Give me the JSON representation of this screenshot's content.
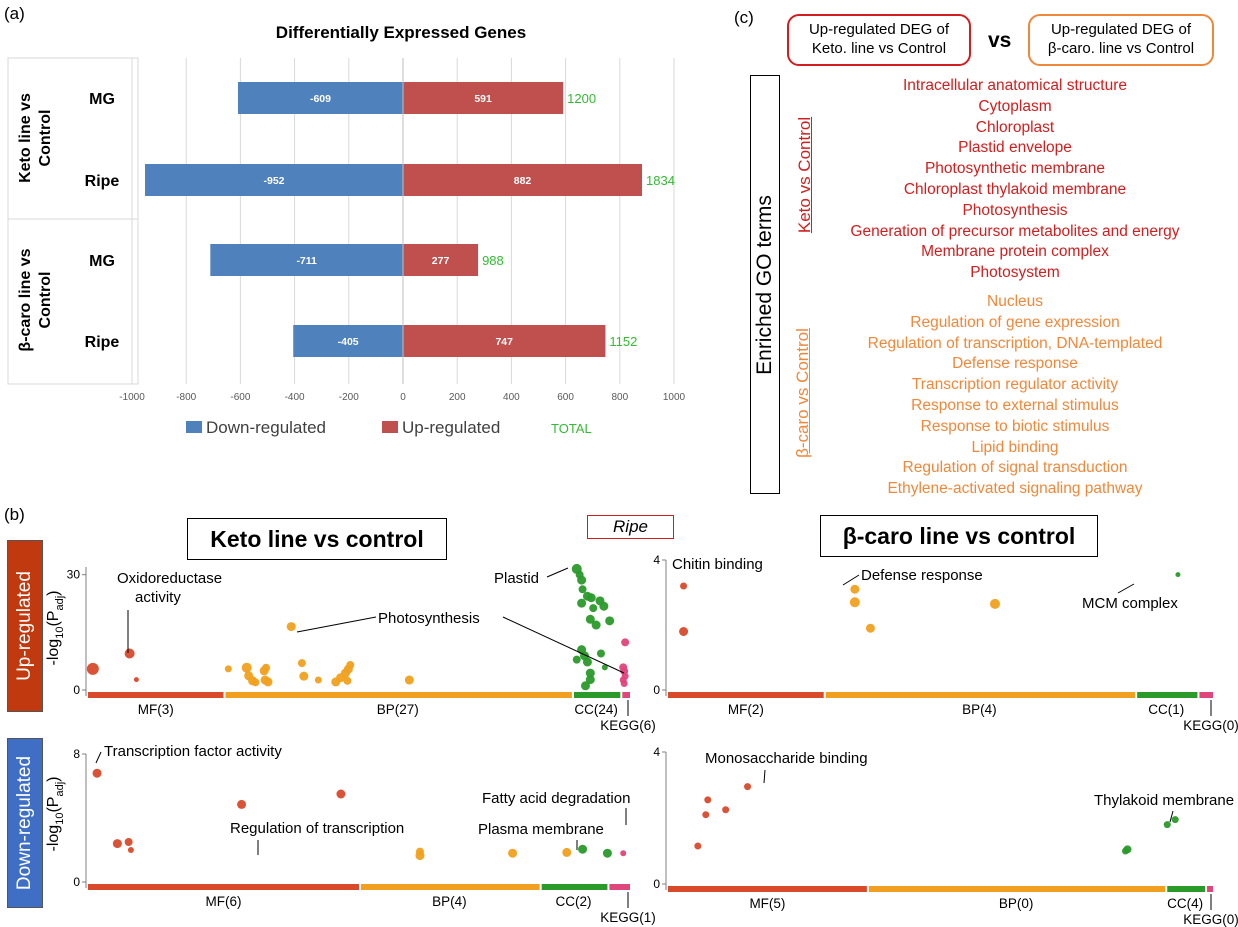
{
  "panel_labels": {
    "a": "(a)",
    "b": "(b)",
    "c": "(c)"
  },
  "chart_data": [
    {
      "type": "bar",
      "orientation": "horizontal",
      "title": "Differentially Expressed Genes",
      "groups": [
        {
          "label": "Keto  line vs Control",
          "rows": [
            "MG",
            "Ripe"
          ]
        },
        {
          "label": "β-caro  line vs Control",
          "rows": [
            "MG",
            "Ripe"
          ]
        }
      ],
      "categories": [
        "Keto MG",
        "Keto Ripe",
        "β-caro MG",
        "β-caro Ripe"
      ],
      "category_labels": [
        "MG",
        "Ripe",
        "MG",
        "Ripe"
      ],
      "series": [
        {
          "name": "Down-regulated",
          "color": "#4f81bd",
          "values": [
            -609,
            -952,
            -711,
            -405
          ]
        },
        {
          "name": "Up-regulated",
          "color": "#c0504d",
          "values": [
            591,
            882,
            277,
            747
          ]
        }
      ],
      "totals": {
        "name": "TOTAL",
        "color": "#33bb33",
        "values": [
          1200,
          1834,
          988,
          1152
        ]
      },
      "xlim": [
        -1000,
        1000
      ],
      "xticks": [
        -1000,
        -800,
        -600,
        -400,
        -200,
        0,
        200,
        400,
        600,
        800,
        1000
      ],
      "grid": true,
      "legend": "bottom"
    },
    {
      "type": "scatter",
      "title": "Keto line vs control",
      "row": "Up-regulated",
      "ylabel": "-log10(Padj)",
      "yticks": [
        0,
        30
      ],
      "ylim": [
        0,
        32
      ],
      "segments": [
        {
          "label": "MF(3)",
          "color": "#d94a2b",
          "span": [
            0,
            14
          ]
        },
        {
          "label": "BP(27)",
          "color": "#f0a01e",
          "span": [
            14,
            50
          ]
        },
        {
          "label": "CC(24)",
          "color": "#2a9a2a",
          "span": [
            50,
            55
          ]
        },
        {
          "label": "KEGG(6)",
          "color": "#e0457b",
          "span": [
            55,
            56
          ]
        }
      ],
      "points": [
        {
          "x": 0.5,
          "y": 5.5,
          "r": 6,
          "cat": 0
        },
        {
          "x": 4.3,
          "y": 9.5,
          "r": 5,
          "cat": 0
        },
        {
          "x": 5.0,
          "y": 2.7,
          "r": 2.5,
          "cat": 0
        },
        {
          "x": 14.5,
          "y": 5.5,
          "r": 3.5,
          "cat": 1
        },
        {
          "x": 16.4,
          "y": 5.8,
          "r": 5,
          "cat": 1
        },
        {
          "x": 16.6,
          "y": 3.7,
          "r": 4.5,
          "cat": 1
        },
        {
          "x": 17.0,
          "y": 2.4,
          "r": 4.5,
          "cat": 1
        },
        {
          "x": 17.3,
          "y": 2.0,
          "r": 4,
          "cat": 1
        },
        {
          "x": 18.2,
          "y": 5.0,
          "r": 4.5,
          "cat": 1
        },
        {
          "x": 18.3,
          "y": 2.6,
          "r": 4.5,
          "cat": 1
        },
        {
          "x": 18.4,
          "y": 5.8,
          "r": 4,
          "cat": 1
        },
        {
          "x": 18.6,
          "y": 2.1,
          "r": 4.5,
          "cat": 1
        },
        {
          "x": 21.0,
          "y": 16.5,
          "r": 4.5,
          "cat": 1
        },
        {
          "x": 22.1,
          "y": 7.0,
          "r": 4,
          "cat": 1
        },
        {
          "x": 22.3,
          "y": 3.6,
          "r": 4.5,
          "cat": 1
        },
        {
          "x": 23.8,
          "y": 2.6,
          "r": 3.5,
          "cat": 1
        },
        {
          "x": 25.6,
          "y": 2.1,
          "r": 4.5,
          "cat": 1
        },
        {
          "x": 26.1,
          "y": 3.2,
          "r": 4.5,
          "cat": 1
        },
        {
          "x": 26.6,
          "y": 4.4,
          "r": 4.5,
          "cat": 1
        },
        {
          "x": 26.9,
          "y": 5.4,
          "r": 4.5,
          "cat": 1
        },
        {
          "x": 27.1,
          "y": 6.5,
          "r": 4,
          "cat": 1
        },
        {
          "x": 26.8,
          "y": 2.4,
          "r": 4,
          "cat": 1
        },
        {
          "x": 33.2,
          "y": 2.6,
          "r": 4.5,
          "cat": 1
        },
        {
          "x": 50.5,
          "y": 31.5,
          "r": 5,
          "cat": 2
        },
        {
          "x": 50.8,
          "y": 30.0,
          "r": 4,
          "cat": 2
        },
        {
          "x": 51.0,
          "y": 28.6,
          "r": 4.5,
          "cat": 2
        },
        {
          "x": 51.1,
          "y": 26.2,
          "r": 4,
          "cat": 2
        },
        {
          "x": 51.6,
          "y": 24.4,
          "r": 4.5,
          "cat": 2
        },
        {
          "x": 51.0,
          "y": 22.6,
          "r": 4.5,
          "cat": 2
        },
        {
          "x": 52.2,
          "y": 21.3,
          "r": 4,
          "cat": 2
        },
        {
          "x": 52.0,
          "y": 24.0,
          "r": 4.5,
          "cat": 2
        },
        {
          "x": 52.9,
          "y": 23.2,
          "r": 4.5,
          "cat": 2
        },
        {
          "x": 53.3,
          "y": 21.8,
          "r": 4.5,
          "cat": 2
        },
        {
          "x": 51.9,
          "y": 18.4,
          "r": 4.5,
          "cat": 2
        },
        {
          "x": 52.5,
          "y": 16.9,
          "r": 4.5,
          "cat": 2
        },
        {
          "x": 53.9,
          "y": 18.0,
          "r": 4.5,
          "cat": 2
        },
        {
          "x": 51.0,
          "y": 10.5,
          "r": 4.5,
          "cat": 2
        },
        {
          "x": 51.3,
          "y": 8.9,
          "r": 4.5,
          "cat": 2
        },
        {
          "x": 50.5,
          "y": 7.9,
          "r": 4,
          "cat": 2
        },
        {
          "x": 51.6,
          "y": 7.3,
          "r": 4.5,
          "cat": 2
        },
        {
          "x": 53.0,
          "y": 9.5,
          "r": 4,
          "cat": 2
        },
        {
          "x": 53.4,
          "y": 5.9,
          "r": 3,
          "cat": 2
        },
        {
          "x": 51.9,
          "y": 4.4,
          "r": 4.5,
          "cat": 2
        },
        {
          "x": 51.9,
          "y": 2.7,
          "r": 4.5,
          "cat": 2
        },
        {
          "x": 51.4,
          "y": 1.1,
          "r": 4.5,
          "cat": 2
        },
        {
          "x": 55.5,
          "y": 12.4,
          "r": 4,
          "cat": 3
        },
        {
          "x": 55.3,
          "y": 5.9,
          "r": 4,
          "cat": 3
        },
        {
          "x": 55.4,
          "y": 4.9,
          "r": 4,
          "cat": 3
        },
        {
          "x": 55.5,
          "y": 3.6,
          "r": 3.5,
          "cat": 3
        },
        {
          "x": 55.3,
          "y": 2.6,
          "r": 3.5,
          "cat": 3
        },
        {
          "x": 55.4,
          "y": 1.7,
          "r": 3.5,
          "cat": 3
        }
      ],
      "annotations": [
        "Oxidoreductase activity",
        "Photosynthesis",
        "Plastid"
      ]
    },
    {
      "type": "scatter",
      "title": "β-caro line vs control",
      "row": "Up-regulated",
      "yticks": [
        0,
        4
      ],
      "ylim": [
        0,
        4
      ],
      "segments": [
        {
          "label": "MF(2)",
          "color": "#d94a2b",
          "span": [
            0,
            2
          ]
        },
        {
          "label": "BP(4)",
          "color": "#f0a01e",
          "span": [
            2,
            6
          ]
        },
        {
          "label": "CC(1)",
          "color": "#2a9a2a",
          "span": [
            6,
            6.8
          ]
        },
        {
          "label": "KEGG(0)",
          "color": "#e0457b",
          "span": [
            6.8,
            7
          ]
        }
      ],
      "points": [
        {
          "x": 0.2,
          "y": 3.2,
          "r": 3.5,
          "cat": 0
        },
        {
          "x": 0.2,
          "y": 1.8,
          "r": 4.5,
          "cat": 0
        },
        {
          "x": 2.4,
          "y": 3.1,
          "r": 4.5,
          "cat": 1
        },
        {
          "x": 2.4,
          "y": 2.7,
          "r": 5,
          "cat": 1
        },
        {
          "x": 2.6,
          "y": 1.9,
          "r": 4.5,
          "cat": 1
        },
        {
          "x": 4.2,
          "y": 2.65,
          "r": 5,
          "cat": 1
        },
        {
          "x": 6.55,
          "y": 3.55,
          "r": 2.5,
          "cat": 2
        }
      ],
      "annotations": [
        "Chitin binding",
        "Defense response",
        "MCM complex"
      ]
    },
    {
      "type": "scatter",
      "title": "Keto line vs control",
      "row": "Down-regulated",
      "ylabel": "-log10(Padj)",
      "yticks": [
        0,
        8
      ],
      "ylim": [
        0,
        8
      ],
      "segments": [
        {
          "label": "MF(6)",
          "color": "#d94a2b",
          "span": [
            0,
            6
          ]
        },
        {
          "label": "BP(4)",
          "color": "#f0a01e",
          "span": [
            6,
            10
          ]
        },
        {
          "label": "CC(2)",
          "color": "#2a9a2a",
          "span": [
            10,
            11.5
          ]
        },
        {
          "label": "KEGG(1)",
          "color": "#e0457b",
          "span": [
            11.5,
            12
          ]
        }
      ],
      "points": [
        {
          "x": 0.2,
          "y": 6.8,
          "r": 4.5,
          "cat": 0
        },
        {
          "x": 0.65,
          "y": 2.4,
          "r": 4.5,
          "cat": 0
        },
        {
          "x": 0.9,
          "y": 2.5,
          "r": 4,
          "cat": 0
        },
        {
          "x": 0.95,
          "y": 2.0,
          "r": 3,
          "cat": 0
        },
        {
          "x": 3.4,
          "y": 4.85,
          "r": 4.5,
          "cat": 0
        },
        {
          "x": 5.6,
          "y": 5.5,
          "r": 4.5,
          "cat": 0
        },
        {
          "x": 7.35,
          "y": 1.65,
          "r": 4.5,
          "cat": 1
        },
        {
          "x": 7.35,
          "y": 1.9,
          "r": 4,
          "cat": 1
        },
        {
          "x": 9.4,
          "y": 1.8,
          "r": 4.5,
          "cat": 1
        },
        {
          "x": 10.6,
          "y": 1.85,
          "r": 4.5,
          "cat": 1
        },
        {
          "x": 10.95,
          "y": 2.05,
          "r": 4.5,
          "cat": 2
        },
        {
          "x": 11.5,
          "y": 1.8,
          "r": 4.5,
          "cat": 2
        },
        {
          "x": 11.85,
          "y": 1.8,
          "r": 3,
          "cat": 3
        }
      ],
      "annotations": [
        "Transcription factor activity",
        "Regulation of transcription",
        "Fatty acid degradation",
        "Plasma membrane"
      ]
    },
    {
      "type": "scatter",
      "title": "β-caro line vs control",
      "row": "Down-regulated",
      "yticks": [
        0,
        4
      ],
      "ylim": [
        0,
        4
      ],
      "segments": [
        {
          "label": "MF(5)",
          "color": "#d94a2b",
          "span": [
            0,
            5
          ]
        },
        {
          "label": "BP(0)",
          "color": "#f0a01e",
          "span": [
            5,
            12.5
          ]
        },
        {
          "label": "CC(4)",
          "color": "#2a9a2a",
          "span": [
            12.5,
            13.5
          ]
        },
        {
          "label": "KEGG(0)",
          "color": "#e0457b",
          "span": [
            13.5,
            13.7
          ]
        }
      ],
      "points": [
        {
          "x": 1.0,
          "y": 2.55,
          "r": 3.5,
          "cat": 0
        },
        {
          "x": 0.95,
          "y": 2.1,
          "r": 3.5,
          "cat": 0
        },
        {
          "x": 1.45,
          "y": 2.25,
          "r": 3.5,
          "cat": 0
        },
        {
          "x": 2.0,
          "y": 2.95,
          "r": 3.5,
          "cat": 0
        },
        {
          "x": 0.75,
          "y": 1.15,
          "r": 3.5,
          "cat": 0
        },
        {
          "x": 12.75,
          "y": 1.95,
          "r": 3.5,
          "cat": 2
        },
        {
          "x": 12.55,
          "y": 1.8,
          "r": 3.5,
          "cat": 2
        },
        {
          "x": 11.55,
          "y": 1.05,
          "r": 4,
          "cat": 2
        },
        {
          "x": 11.5,
          "y": 1.0,
          "r": 3.5,
          "cat": 2
        }
      ],
      "annotations": [
        "Monosaccharide binding",
        "Thylakoid membrane"
      ]
    }
  ],
  "panel_b": {
    "titles": {
      "keto": "Keto line vs control",
      "bcaro": "β-caro line vs control"
    },
    "ripe_label": "Ripe",
    "row_labels": {
      "up": "Up-regulated",
      "down": "Down-regulated"
    },
    "row_colors": {
      "up": "#c1390e",
      "down": "#3f6fc4"
    },
    "ylabel_main": "-log",
    "ylabel_sub10": "10",
    "ylabel_mid": "(P",
    "ylabel_subadj": "adj",
    "ylabel_end": ")"
  },
  "panel_c": {
    "header_left": [
      "Up-regulated DEG of",
      "Keto. line vs Control"
    ],
    "header_right": [
      "Up-regulated DEG of",
      "β-caro. line vs Control"
    ],
    "vs": "vs",
    "enriched_label": "Enriched GO terms",
    "keto_label": "Keto vs Control",
    "bcaro_label": "β-caro vs Control",
    "keto_color": "#d21e1e",
    "bcaro_color": "#f0883a",
    "keto_terms": [
      "Intracellular anatomical structure",
      "Cytoplasm",
      "Chloroplast",
      "Plastid envelope",
      "Photosynthetic membrane",
      "Chloroplast thylakoid membrane",
      "Photosynthesis",
      "Generation of precursor metabolites and energy",
      "Membrane protein complex",
      "Photosystem"
    ],
    "bcaro_terms": [
      "Nucleus",
      "Regulation of gene expression",
      "Regulation of transcription, DNA-templated",
      "Defense response",
      "Transcription regulator activity",
      "Response to external stimulus",
      "Response to biotic stimulus",
      "Lipid binding",
      "Regulation of signal transduction",
      "Ethylene-activated signaling pathway"
    ]
  }
}
